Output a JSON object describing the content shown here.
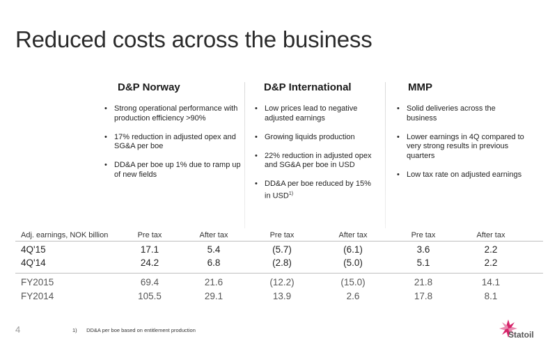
{
  "title": "Reduced costs across the business",
  "columns": [
    {
      "heading": "D&P Norway",
      "bullets": [
        "Strong operational performance with production efficiency >90%",
        "17% reduction in adjusted opex and SG&A per boe",
        "DD&A per boe up 1% due to ramp up of new fields"
      ]
    },
    {
      "heading": "D&P International",
      "bullets": [
        "Low prices lead to negative adjusted earnings",
        "Growing liquids production",
        "22% reduction in adjusted opex and SG&A per boe in USD",
        "DD&A per boe reduced by 15% in USD"
      ],
      "last_bullet_sup": "1)"
    },
    {
      "heading": "MMP",
      "bullets": [
        "Solid deliveries across the business",
        "Lower earnings in 4Q compared to very strong results in previous quarters",
        "Low tax rate on adjusted earnings"
      ]
    }
  ],
  "table": {
    "header_label": "Adj. earnings, NOK billion",
    "col_headers": [
      "Pre tax",
      "After tax",
      "Pre tax",
      "After tax",
      "Pre tax",
      "After tax"
    ],
    "rows": [
      {
        "label": "4Q'15",
        "values": [
          "17.1",
          "5.4",
          "(5.7)",
          "(6.1)",
          "3.6",
          "2.2"
        ]
      },
      {
        "label": "4Q'14",
        "values": [
          "24.2",
          "6.8",
          "(2.8)",
          "(5.0)",
          "5.1",
          "2.2"
        ]
      },
      {
        "label": "FY2015",
        "values": [
          "69.4",
          "21.6",
          "(12.2)",
          "(15.0)",
          "21.8",
          "14.1"
        ]
      },
      {
        "label": "FY2014",
        "values": [
          "105.5",
          "29.1",
          "13.9",
          "2.6",
          "17.8",
          "8.1"
        ]
      }
    ]
  },
  "footer": {
    "page_number": "4",
    "footnote_marker": "1)",
    "footnote_text": "DD&A per boe based on entitlement production",
    "logo_text": "Statoil"
  },
  "colors": {
    "logo_pink": "#d6236a",
    "logo_light": "#e98bb0",
    "rule": "#bfbfbf"
  }
}
